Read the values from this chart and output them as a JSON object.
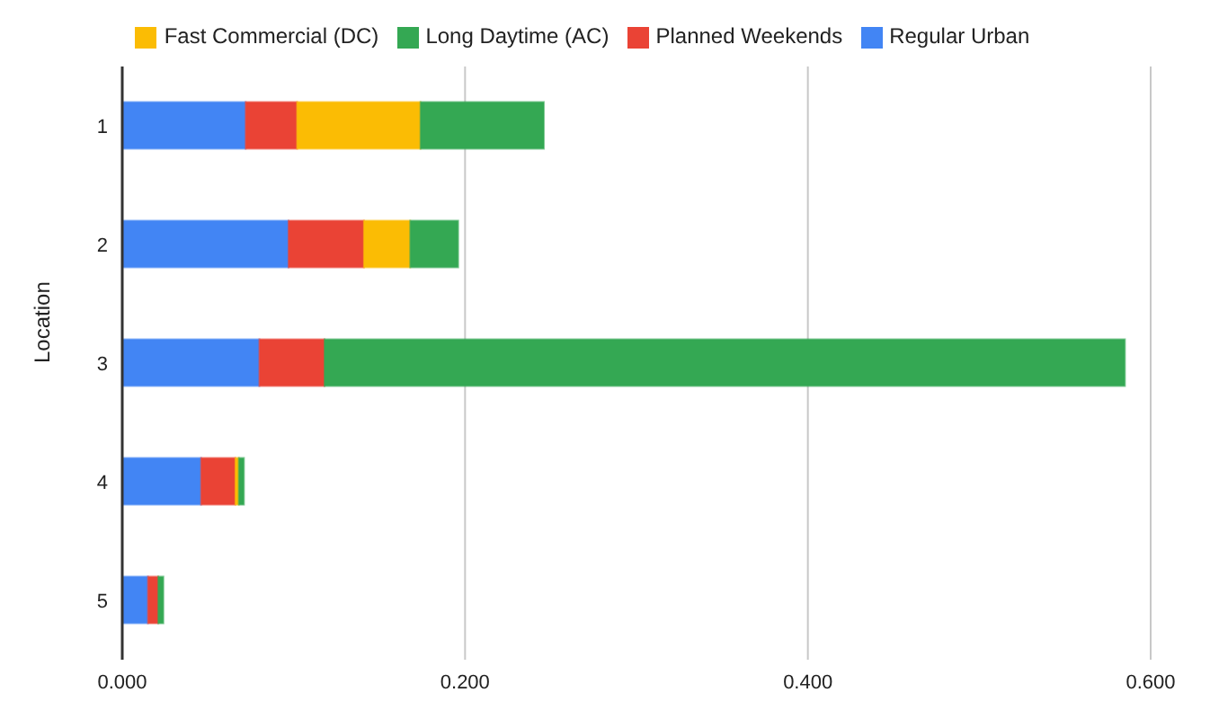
{
  "chart_data": {
    "type": "bar",
    "orientation": "horizontal",
    "stacked": true,
    "ylabel": "Location",
    "categories": [
      "1",
      "2",
      "3",
      "4",
      "5"
    ],
    "series": [
      {
        "name": "Regular Urban",
        "color": "#4285f4",
        "values": [
          0.072,
          0.097,
          0.08,
          0.046,
          0.015
        ]
      },
      {
        "name": "Planned Weekends",
        "color": "#ea4335",
        "values": [
          0.03,
          0.044,
          0.038,
          0.02,
          0.006
        ]
      },
      {
        "name": "Fast Commercial (DC)",
        "color": "#fbbc04",
        "values": [
          0.072,
          0.027,
          0,
          0.002,
          0
        ]
      },
      {
        "name": "Long Daytime (AC)",
        "color": "#34a853",
        "values": [
          0.072,
          0.028,
          0.467,
          0.003,
          0.003
        ]
      }
    ],
    "xlim": [
      0,
      0.6
    ],
    "xticks": [
      {
        "value": 0,
        "label": "0.000"
      },
      {
        "value": 0.2,
        "label": "0.200"
      },
      {
        "value": 0.4,
        "label": "0.400"
      },
      {
        "value": 0.6,
        "label": "0.600"
      }
    ],
    "grid": "x",
    "legend": "top"
  }
}
